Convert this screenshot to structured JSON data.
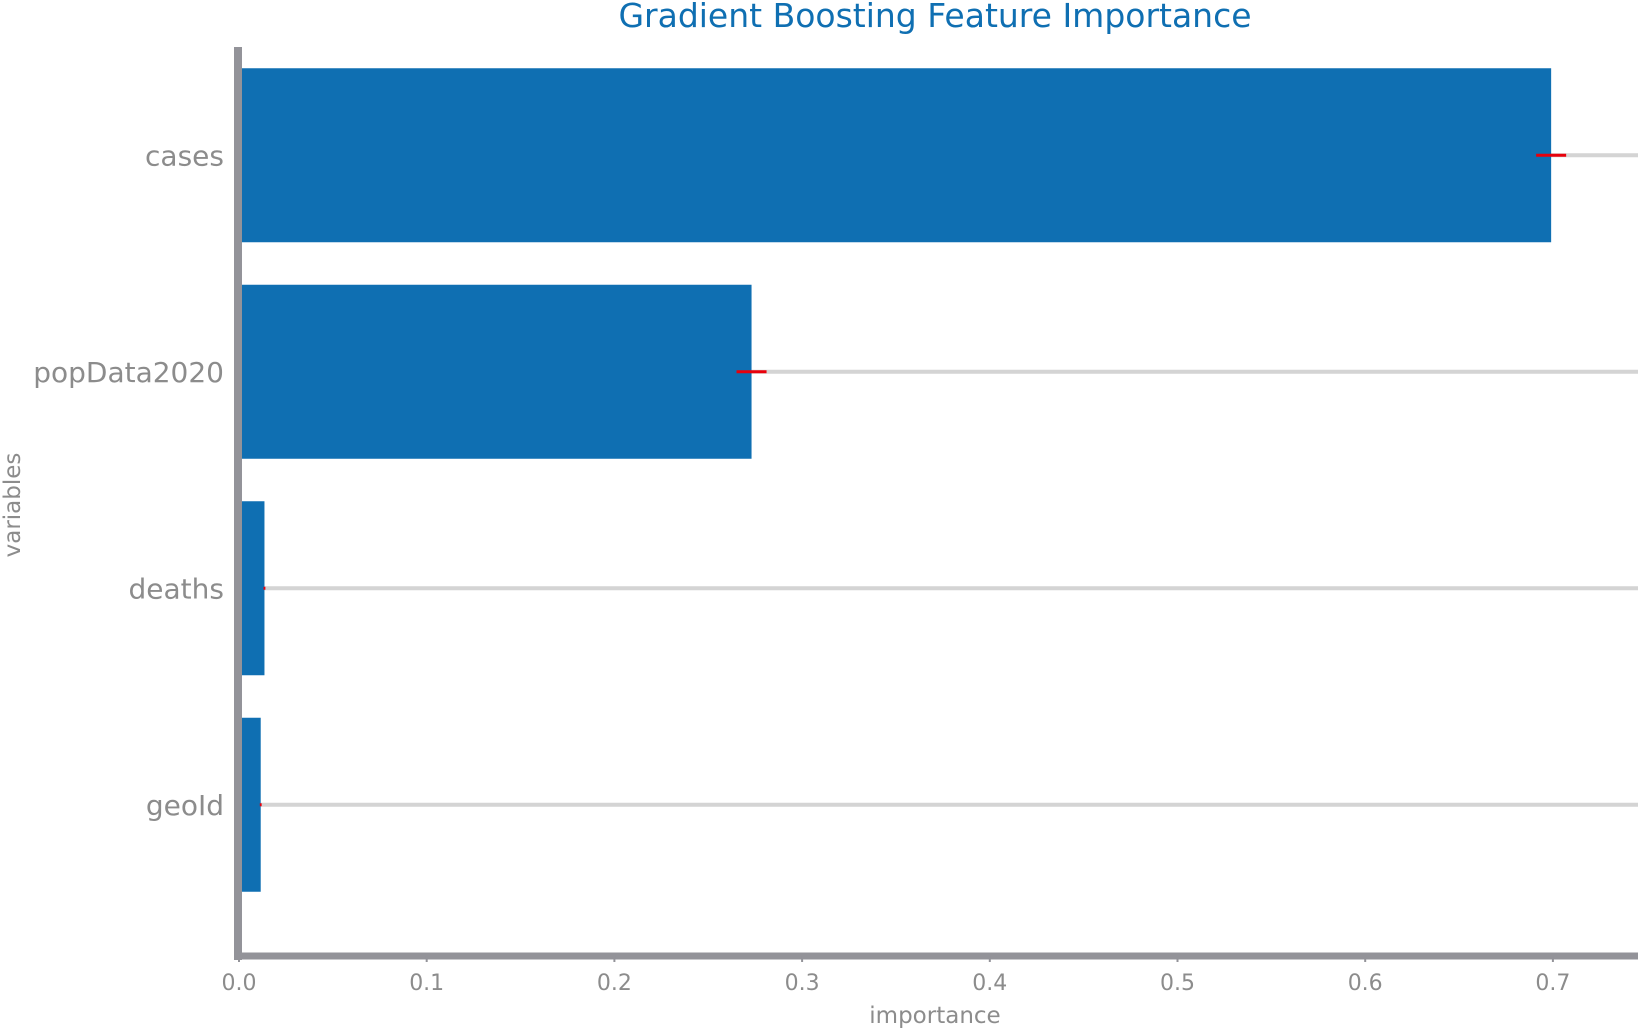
{
  "chart_data": {
    "type": "bar",
    "orientation": "horizontal",
    "title": "Gradient Boosting Feature Importance",
    "xlabel": "importance",
    "ylabel": "variables",
    "categories": [
      "cases",
      "popData2020",
      "deaths",
      "geoId"
    ],
    "values": [
      0.698,
      0.272,
      0.0125,
      0.0105
    ],
    "error": [
      0.008,
      0.008,
      0.0005,
      0.0005
    ],
    "xlim": [
      0.0,
      0.745
    ],
    "xticks": [
      "0.0",
      "0.1",
      "0.2",
      "0.3",
      "0.4",
      "0.5",
      "0.6",
      "0.7"
    ],
    "grid": "horizontal at each category",
    "colors": {
      "bar": "#0f6fb2",
      "error": "#e8000b",
      "grid": "#d4d4d4",
      "axis": "#939399",
      "title": "#0f6fb2",
      "text": "#8c8c8c"
    }
  }
}
